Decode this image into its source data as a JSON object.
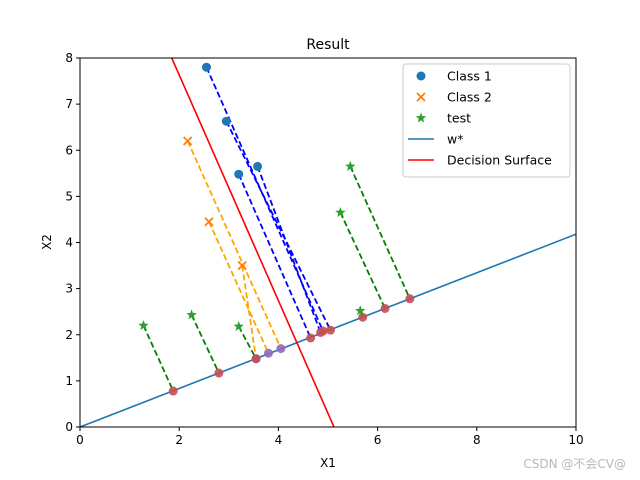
{
  "chart_data": {
    "type": "scatter",
    "title": "Result",
    "xlabel": "X1",
    "ylabel": "X2",
    "xlim": [
      0,
      10
    ],
    "ylim": [
      0,
      8
    ],
    "xticks": [
      "0",
      "2",
      "4",
      "6",
      "8",
      "10"
    ],
    "yticks": [
      "0",
      "1",
      "2",
      "3",
      "4",
      "5",
      "6",
      "7",
      "8"
    ],
    "grid": false,
    "legend_position": "top-right",
    "series": [
      {
        "name": "Class 1",
        "kind": "scatter",
        "marker": "circle",
        "color": "#1f77b4",
        "points": [
          [
            2.55,
            7.8
          ],
          [
            2.95,
            6.63
          ],
          [
            3.2,
            5.48
          ],
          [
            3.58,
            5.65
          ]
        ],
        "projections": [
          [
            4.9,
            2.08
          ],
          [
            5.05,
            2.1
          ],
          [
            4.65,
            1.93
          ],
          [
            4.85,
            2.05
          ]
        ],
        "projection_line_color": "#0000ff"
      },
      {
        "name": "Class 2",
        "kind": "scatter",
        "marker": "x",
        "color": "#ff7f0e",
        "points": [
          [
            2.17,
            6.2
          ],
          [
            2.6,
            4.45
          ],
          [
            3.27,
            3.5
          ]
        ],
        "projections": [
          [
            4.05,
            1.7
          ],
          [
            3.8,
            1.6
          ],
          [
            3.55,
            1.48
          ]
        ],
        "projection_line_color": "#ffa500"
      },
      {
        "name": "test",
        "kind": "scatter",
        "marker": "star",
        "color": "#2ca02c",
        "points": [
          [
            1.28,
            2.2
          ],
          [
            2.25,
            2.43
          ],
          [
            3.2,
            2.18
          ],
          [
            5.25,
            4.65
          ],
          [
            5.45,
            5.65
          ],
          [
            5.65,
            2.52
          ]
        ],
        "projections": [
          [
            1.88,
            0.78
          ],
          [
            2.8,
            1.17
          ],
          [
            3.55,
            1.48
          ],
          [
            6.15,
            2.57
          ],
          [
            6.65,
            2.78
          ],
          [
            5.7,
            2.38
          ]
        ],
        "projection_line_color": "#008000"
      },
      {
        "name": "w*",
        "kind": "line",
        "color": "#1f77b4",
        "x": [
          0,
          10
        ],
        "y": [
          0,
          4.18
        ]
      },
      {
        "name": "Decision Surface",
        "kind": "line",
        "color": "#ff0000",
        "x": [
          1.85,
          5.12
        ],
        "y": [
          8,
          0
        ]
      }
    ],
    "projected_point_colors": [
      "#c44e52",
      "#9467bd"
    ]
  },
  "watermark": "CSDN @不会CV@"
}
